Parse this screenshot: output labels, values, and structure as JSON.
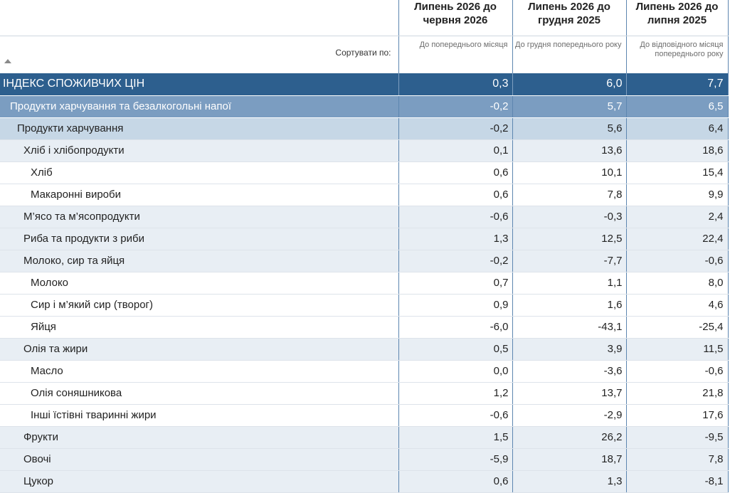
{
  "columns": [
    {
      "title": "Липень 2026 до червня 2026",
      "subtitle": "До попереднього місяця"
    },
    {
      "title": "Липень 2026 до грудня 2025",
      "subtitle": "До грудня попереднього року"
    },
    {
      "title": "Липень 2026 до липня 2025",
      "subtitle": "До відповідного місяця попереднього року"
    }
  ],
  "sort_label": "Сортувати по:",
  "rows": [
    {
      "level": 0,
      "name": "ІНДЕКС СПОЖИВЧИХ ЦІН",
      "values": [
        "0,3",
        "6,0",
        "7,7"
      ]
    },
    {
      "level": 1,
      "name": "Продукти харчування та безалкогольні напої",
      "values": [
        "-0,2",
        "5,7",
        "6,5"
      ]
    },
    {
      "level": 2,
      "name": "Продукти харчування",
      "values": [
        "-0,2",
        "5,6",
        "6,4"
      ]
    },
    {
      "level": 3,
      "name": "Хліб і хлібопродукти",
      "values": [
        "0,1",
        "13,6",
        "18,6"
      ]
    },
    {
      "level": 4,
      "name": "Хліб",
      "values": [
        "0,6",
        "10,1",
        "15,4"
      ]
    },
    {
      "level": 4,
      "name": "Макаронні вироби",
      "values": [
        "0,6",
        "7,8",
        "9,9"
      ]
    },
    {
      "level": 3,
      "name": "М’ясо та м’ясопродукти",
      "values": [
        "-0,6",
        "-0,3",
        "2,4"
      ]
    },
    {
      "level": 3,
      "name": "Риба та продукти з риби",
      "values": [
        "1,3",
        "12,5",
        "22,4"
      ]
    },
    {
      "level": 3,
      "name": "Молоко, сир та яйця",
      "values": [
        "-0,2",
        "-7,7",
        "-0,6"
      ]
    },
    {
      "level": 4,
      "name": "Молоко",
      "values": [
        "0,7",
        "1,1",
        "8,0"
      ]
    },
    {
      "level": 4,
      "name": "Сир і м’який сир (творог)",
      "values": [
        "0,9",
        "1,6",
        "4,6"
      ]
    },
    {
      "level": 4,
      "name": "Яйця",
      "values": [
        "-6,0",
        "-43,1",
        "-25,4"
      ]
    },
    {
      "level": 3,
      "name": "Олія та жири",
      "values": [
        "0,5",
        "3,9",
        "11,5"
      ]
    },
    {
      "level": 4,
      "name": "Масло",
      "values": [
        "0,0",
        "-3,6",
        "-0,6"
      ]
    },
    {
      "level": 4,
      "name": "Олія соняшникова",
      "values": [
        "1,2",
        "13,7",
        "21,8"
      ]
    },
    {
      "level": 4,
      "name": "Інші їстівні тваринні жири",
      "values": [
        "-0,6",
        "-2,9",
        "17,6"
      ]
    },
    {
      "level": 3,
      "name": "Фрукти",
      "values": [
        "1,5",
        "26,2",
        "-9,5"
      ]
    },
    {
      "level": 3,
      "name": "Овочі",
      "values": [
        "-5,9",
        "18,7",
        "7,8"
      ]
    },
    {
      "level": 3,
      "name": "Цукор",
      "values": [
        "0,6",
        "1,3",
        "-8,1"
      ]
    }
  ],
  "colors": {
    "header_row": "#2d5f8e",
    "group_row": "#7b9dc1",
    "subgroup_row": "#c6d7e6",
    "category_row": "#e8eef4"
  }
}
